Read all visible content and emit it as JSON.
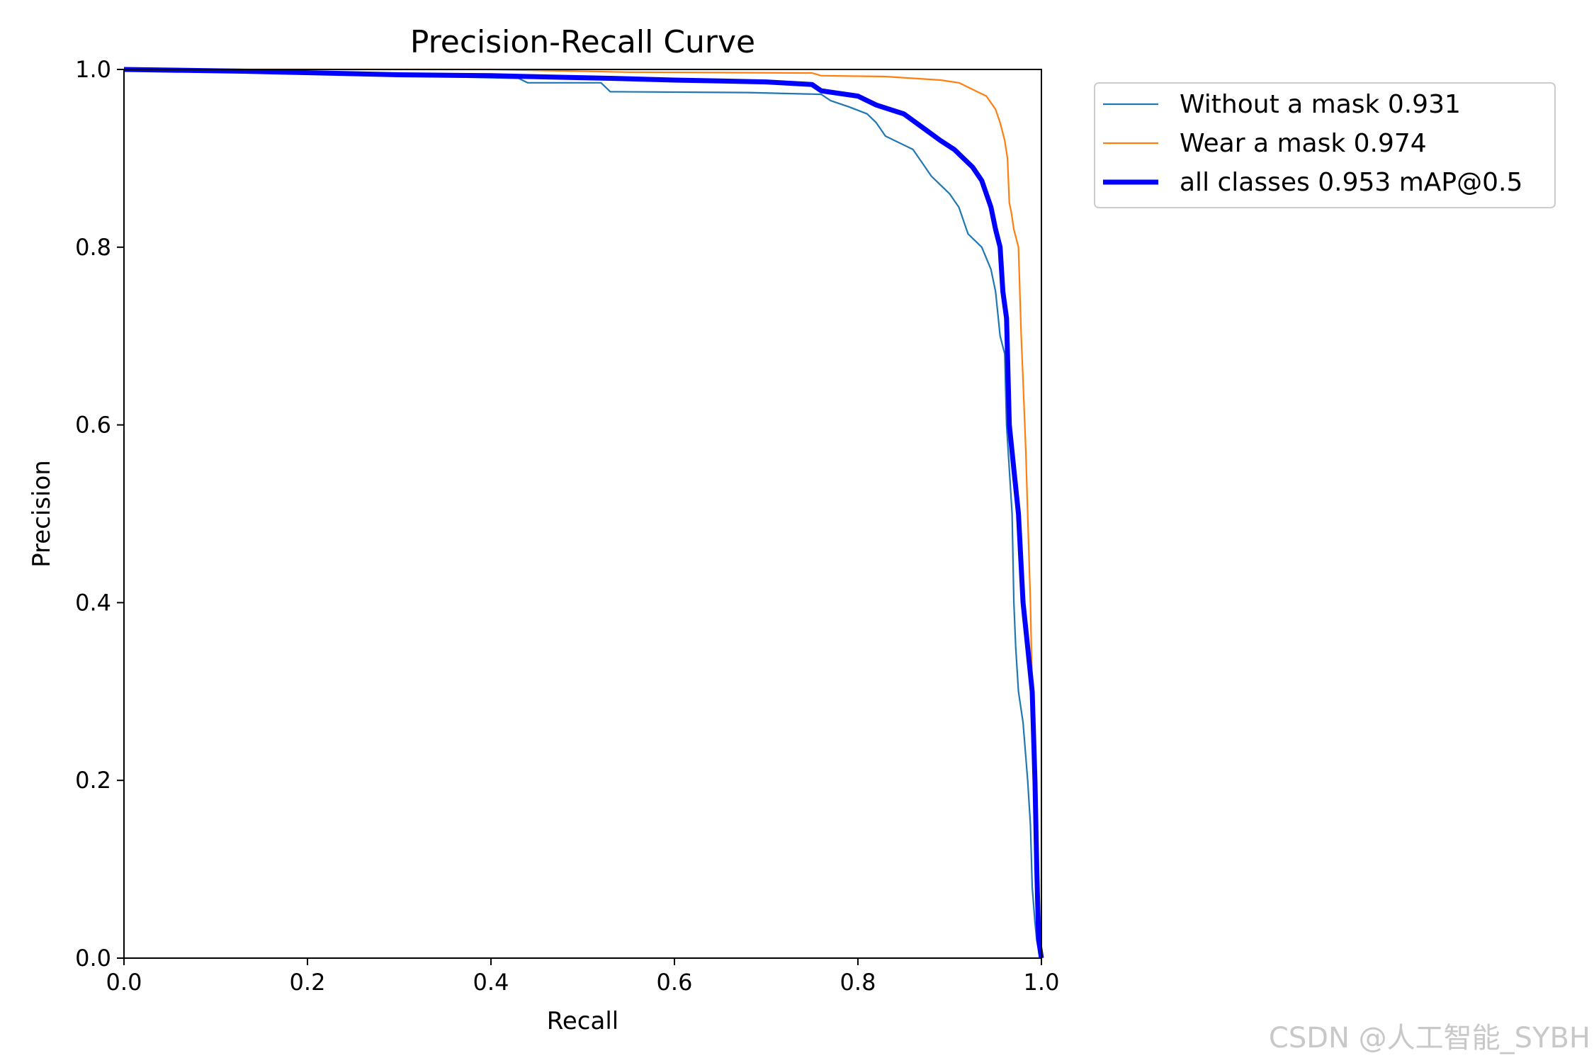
{
  "chart_data": {
    "type": "line",
    "title": "Precision-Recall Curve",
    "xlabel": "Recall",
    "ylabel": "Precision",
    "xlim": [
      0.0,
      1.0
    ],
    "ylim": [
      0.0,
      1.0
    ],
    "xticks": [
      "0.0",
      "0.2",
      "0.4",
      "0.6",
      "0.8",
      "1.0"
    ],
    "yticks": [
      "0.0",
      "0.2",
      "0.4",
      "0.6",
      "0.8",
      "1.0"
    ],
    "grid": false,
    "legend_position": "outside-top-right",
    "series": [
      {
        "name": "Without a mask 0.931",
        "color": "#1f77b4",
        "line_weight": "thin",
        "points": [
          [
            0,
            1.0
          ],
          [
            0.13,
            1.0
          ],
          [
            0.3,
            0.993
          ],
          [
            0.43,
            0.99
          ],
          [
            0.44,
            0.985
          ],
          [
            0.52,
            0.985
          ],
          [
            0.53,
            0.975
          ],
          [
            0.68,
            0.974
          ],
          [
            0.76,
            0.972
          ],
          [
            0.77,
            0.965
          ],
          [
            0.79,
            0.958
          ],
          [
            0.81,
            0.95
          ],
          [
            0.82,
            0.94
          ],
          [
            0.83,
            0.925
          ],
          [
            0.86,
            0.91
          ],
          [
            0.87,
            0.895
          ],
          [
            0.88,
            0.88
          ],
          [
            0.9,
            0.86
          ],
          [
            0.91,
            0.845
          ],
          [
            0.92,
            0.815
          ],
          [
            0.935,
            0.8
          ],
          [
            0.945,
            0.775
          ],
          [
            0.95,
            0.75
          ],
          [
            0.955,
            0.7
          ],
          [
            0.96,
            0.68
          ],
          [
            0.962,
            0.6
          ],
          [
            0.965,
            0.55
          ],
          [
            0.968,
            0.5
          ],
          [
            0.97,
            0.4
          ],
          [
            0.972,
            0.35
          ],
          [
            0.975,
            0.3
          ],
          [
            0.98,
            0.265
          ],
          [
            0.985,
            0.2
          ],
          [
            0.988,
            0.15
          ],
          [
            0.99,
            0.08
          ],
          [
            0.993,
            0.04
          ],
          [
            0.995,
            0.02
          ],
          [
            1.0,
            0.0
          ]
        ]
      },
      {
        "name": "Wear a mask 0.974",
        "color": "#ff7f0e",
        "line_weight": "thin",
        "points": [
          [
            0,
            1.0
          ],
          [
            0.4,
            1.0
          ],
          [
            0.55,
            0.997
          ],
          [
            0.75,
            0.996
          ],
          [
            0.76,
            0.993
          ],
          [
            0.83,
            0.992
          ],
          [
            0.86,
            0.99
          ],
          [
            0.89,
            0.988
          ],
          [
            0.91,
            0.985
          ],
          [
            0.93,
            0.975
          ],
          [
            0.94,
            0.97
          ],
          [
            0.95,
            0.955
          ],
          [
            0.955,
            0.94
          ],
          [
            0.96,
            0.92
          ],
          [
            0.963,
            0.9
          ],
          [
            0.965,
            0.85
          ],
          [
            0.967,
            0.84
          ],
          [
            0.97,
            0.82
          ],
          [
            0.975,
            0.8
          ],
          [
            0.978,
            0.7
          ],
          [
            0.98,
            0.65
          ],
          [
            0.983,
            0.57
          ],
          [
            0.985,
            0.5
          ],
          [
            0.988,
            0.4
          ],
          [
            0.99,
            0.3
          ],
          [
            0.993,
            0.2
          ],
          [
            0.996,
            0.1
          ],
          [
            1.0,
            0.0
          ]
        ]
      },
      {
        "name": "all classes 0.953 mAP@0.5",
        "color": "#0000ff",
        "line_weight": "thick",
        "points": [
          [
            0,
            1.0
          ],
          [
            0.13,
            0.998
          ],
          [
            0.3,
            0.994
          ],
          [
            0.4,
            0.993
          ],
          [
            0.53,
            0.99
          ],
          [
            0.6,
            0.988
          ],
          [
            0.65,
            0.987
          ],
          [
            0.7,
            0.986
          ],
          [
            0.75,
            0.983
          ],
          [
            0.76,
            0.976
          ],
          [
            0.8,
            0.97
          ],
          [
            0.82,
            0.96
          ],
          [
            0.85,
            0.95
          ],
          [
            0.87,
            0.935
          ],
          [
            0.89,
            0.92
          ],
          [
            0.905,
            0.91
          ],
          [
            0.915,
            0.9
          ],
          [
            0.925,
            0.89
          ],
          [
            0.935,
            0.875
          ],
          [
            0.94,
            0.86
          ],
          [
            0.945,
            0.845
          ],
          [
            0.95,
            0.82
          ],
          [
            0.955,
            0.8
          ],
          [
            0.958,
            0.75
          ],
          [
            0.962,
            0.72
          ],
          [
            0.965,
            0.6
          ],
          [
            0.97,
            0.55
          ],
          [
            0.975,
            0.5
          ],
          [
            0.98,
            0.4
          ],
          [
            0.985,
            0.35
          ],
          [
            0.99,
            0.3
          ],
          [
            0.993,
            0.2
          ],
          [
            0.995,
            0.1
          ],
          [
            0.997,
            0.02
          ],
          [
            1.0,
            0.0
          ]
        ]
      }
    ]
  },
  "watermark": "CSDN @人工智能_SYBH"
}
